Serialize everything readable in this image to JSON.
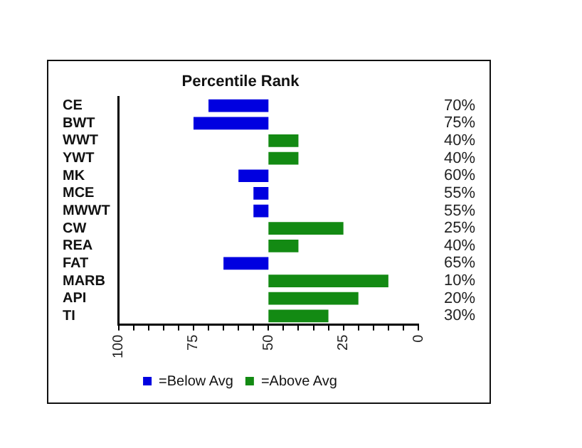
{
  "chart_data": {
    "type": "bar",
    "orientation": "horizontal",
    "title": "Percentile Rank",
    "categories": [
      "CE",
      "BWT",
      "WWT",
      "YWT",
      "MK",
      "MCE",
      "MWWT",
      "CW",
      "REA",
      "FAT",
      "MARB",
      "API",
      "TI"
    ],
    "series": [
      {
        "name": "=Below Avg",
        "color": "#0000e0",
        "base": [
          50,
          50,
          null,
          null,
          50,
          50,
          50,
          null,
          null,
          50,
          null,
          null,
          null
        ],
        "values": [
          20,
          25,
          null,
          null,
          10,
          5,
          5,
          null,
          null,
          15,
          null,
          null,
          null
        ]
      },
      {
        "name": "=Above Avg",
        "color": "#138a13",
        "base": [
          null,
          null,
          50,
          50,
          null,
          null,
          null,
          50,
          50,
          null,
          50,
          50,
          50
        ],
        "values": [
          null,
          null,
          -10,
          -10,
          null,
          null,
          null,
          -25,
          -10,
          null,
          -40,
          -30,
          -20
        ]
      }
    ],
    "value_labels": [
      "70%",
      "75%",
      "40%",
      "40%",
      "60%",
      "55%",
      "55%",
      "25%",
      "40%",
      "65%",
      "10%",
      "20%",
      "30%"
    ],
    "xlim": [
      100,
      0
    ],
    "xticks": [
      100,
      {
        "value": 95,
        "label": null
      },
      {
        "value": 90,
        "label": null
      },
      {
        "value": 85,
        "label": null
      },
      {
        "value": 80,
        "label": null
      },
      75,
      {
        "value": 70,
        "label": null
      },
      {
        "value": 65,
        "label": null
      },
      {
        "value": 60,
        "label": null
      },
      {
        "value": 55,
        "label": null
      },
      50,
      {
        "value": 45,
        "label": null
      },
      {
        "value": 40,
        "label": null
      },
      {
        "value": 35,
        "label": null
      },
      {
        "value": 30,
        "label": null
      },
      25,
      {
        "value": 20,
        "label": null
      },
      {
        "value": 15,
        "label": null
      },
      {
        "value": 10,
        "label": null
      },
      {
        "value": 5,
        "label": null
      },
      0
    ],
    "grid": false,
    "legend": "bottom"
  }
}
